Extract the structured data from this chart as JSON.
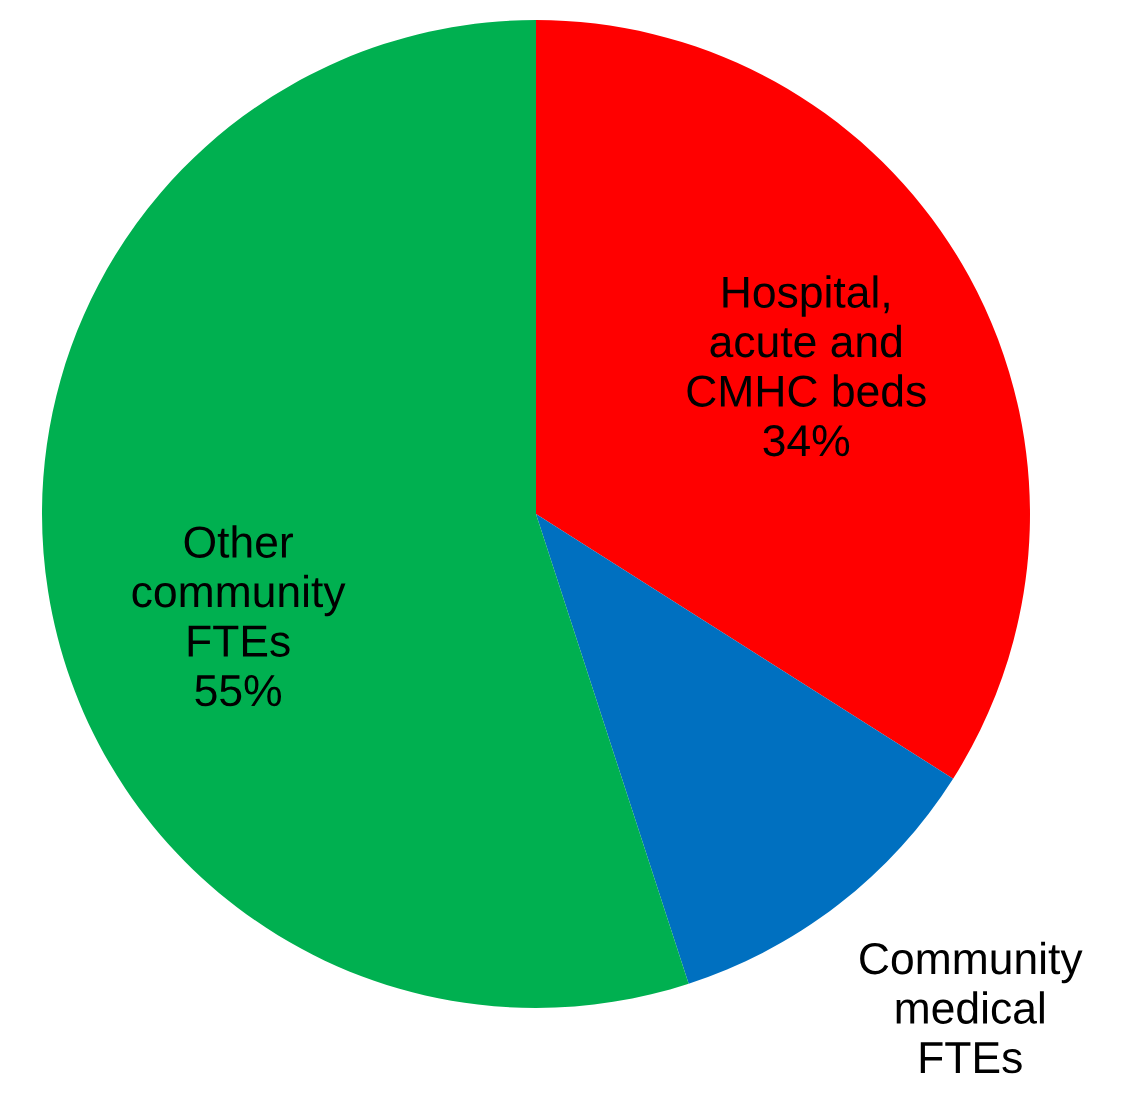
{
  "chart_data": {
    "type": "pie",
    "categories": [
      "Hospital,\nacute and\nCMHC beds",
      "Community\nmedical\nFTEs",
      "Other\ncommunity\nFTEs"
    ],
    "values": [
      34,
      11,
      55
    ],
    "colors": [
      "#ff0000",
      "#0070c0",
      "#00b050"
    ],
    "value_labels": [
      "34%",
      null,
      "55%"
    ]
  }
}
